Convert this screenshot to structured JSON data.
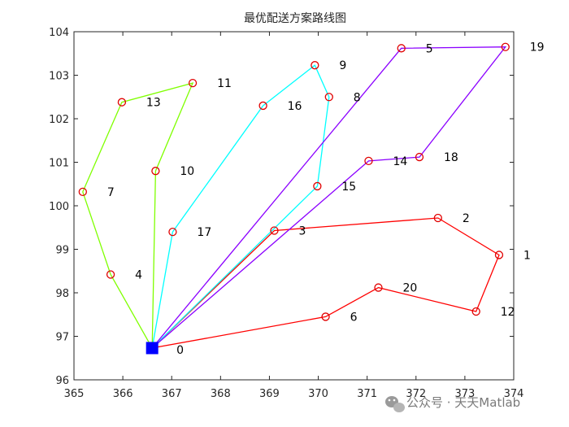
{
  "chart_data": {
    "type": "line",
    "title": "最优配送方案路线图",
    "xlabel": "",
    "ylabel": "",
    "xlim": [
      365,
      374
    ],
    "ylim": [
      96,
      104
    ],
    "x_ticks": [
      365,
      366,
      367,
      368,
      369,
      370,
      371,
      372,
      373,
      374
    ],
    "y_ticks": [
      96,
      97,
      98,
      99,
      100,
      101,
      102,
      103,
      104
    ],
    "box": true,
    "grid": false,
    "depot": {
      "label": "0",
      "x": 366.6,
      "y": 96.73,
      "marker": "filled-square",
      "color": "#0000ff"
    },
    "nodes": [
      {
        "label": "1",
        "x": 373.7,
        "y": 98.87
      },
      {
        "label": "2",
        "x": 372.45,
        "y": 99.72
      },
      {
        "label": "3",
        "x": 369.1,
        "y": 99.43
      },
      {
        "label": "4",
        "x": 365.75,
        "y": 98.42
      },
      {
        "label": "5",
        "x": 371.7,
        "y": 103.62
      },
      {
        "label": "6",
        "x": 370.15,
        "y": 97.45
      },
      {
        "label": "7",
        "x": 365.18,
        "y": 100.32
      },
      {
        "label": "8",
        "x": 370.22,
        "y": 102.5
      },
      {
        "label": "9",
        "x": 369.93,
        "y": 103.23
      },
      {
        "label": "10",
        "x": 366.67,
        "y": 100.8
      },
      {
        "label": "11",
        "x": 367.43,
        "y": 102.82
      },
      {
        "label": "12",
        "x": 373.23,
        "y": 97.57
      },
      {
        "label": "13",
        "x": 365.98,
        "y": 102.38
      },
      {
        "label": "14",
        "x": 371.03,
        "y": 101.03
      },
      {
        "label": "15",
        "x": 369.98,
        "y": 100.45
      },
      {
        "label": "16",
        "x": 368.87,
        "y": 102.3
      },
      {
        "label": "17",
        "x": 367.02,
        "y": 99.4
      },
      {
        "label": "18",
        "x": 372.07,
        "y": 101.12
      },
      {
        "label": "19",
        "x": 373.83,
        "y": 103.65
      },
      {
        "label": "20",
        "x": 371.23,
        "y": 98.12
      }
    ],
    "node_marker": {
      "shape": "open-circle",
      "color": "#e00000"
    },
    "series": [
      {
        "color": "#ff0000",
        "route": [
          "0",
          "6",
          "20",
          "12",
          "1",
          "2",
          "3",
          "0"
        ]
      },
      {
        "color": "#7fff00",
        "route": [
          "0",
          "4",
          "7",
          "13",
          "11",
          "10",
          "0"
        ]
      },
      {
        "color": "#00ffff",
        "route": [
          "0",
          "17",
          "16",
          "9",
          "8",
          "15",
          "0"
        ]
      },
      {
        "color": "#8b00ff",
        "route": [
          "0",
          "5",
          "19",
          "18",
          "14",
          "0"
        ]
      }
    ]
  },
  "watermark": {
    "text": "公众号 · 天天Matlab",
    "icon": "wechat-icon"
  }
}
